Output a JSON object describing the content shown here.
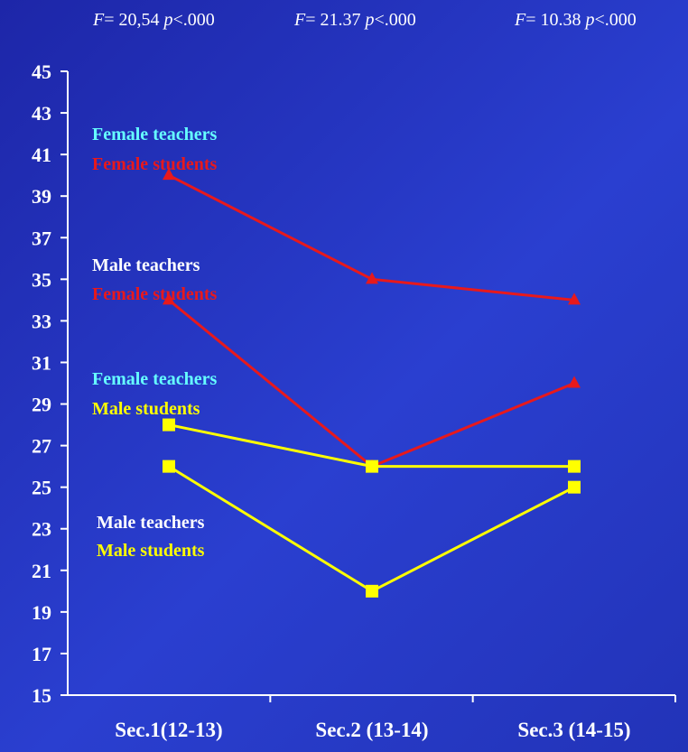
{
  "stats": [
    {
      "f_label": "F",
      "f_value": "= 20,54",
      "p_label": "p",
      "p_value": "<.000"
    },
    {
      "f_label": "F",
      "f_value": "= 21.37",
      "p_label": "p",
      "p_value": "<.000"
    },
    {
      "f_label": "F",
      "f_value": "= 10.38",
      "p_label": "p",
      "p_value": "<.000"
    }
  ],
  "colors": {
    "female_students": "#e8191c",
    "male_students": "#ffff00",
    "female_teachers_label": "#66ffff",
    "male_teachers_label": "#ffffff",
    "axis": "#ffffff"
  },
  "chart_data": {
    "type": "line",
    "categories": [
      "Sec.1(12-13)",
      "Sec.2 (13-14)",
      "Sec.3 (14-15)"
    ],
    "ylim": [
      15,
      45
    ],
    "yticks": [
      15,
      17,
      19,
      21,
      23,
      25,
      27,
      29,
      31,
      33,
      35,
      37,
      39,
      41,
      43,
      45
    ],
    "grid": false,
    "xlabel": "",
    "ylabel": "",
    "series": [
      {
        "teacher": "Female teachers",
        "student": "Female students",
        "values": [
          40,
          35,
          34
        ],
        "marker": "triangle",
        "color_key": "female_students",
        "teacher_color_key": "female_teachers_label"
      },
      {
        "teacher": "Male teachers",
        "student": "Female  students",
        "values": [
          34,
          26,
          30
        ],
        "marker": "triangle",
        "color_key": "female_students",
        "teacher_color_key": "male_teachers_label"
      },
      {
        "teacher": "Female teachers",
        "student": "Male students",
        "values": [
          28,
          26,
          26
        ],
        "marker": "square",
        "color_key": "male_students",
        "teacher_color_key": "female_teachers_label"
      },
      {
        "teacher": "Male teachers",
        "student": "Male students",
        "values": [
          26,
          20,
          25
        ],
        "marker": "square",
        "color_key": "male_students",
        "teacher_color_key": "male_teachers_label"
      }
    ]
  }
}
